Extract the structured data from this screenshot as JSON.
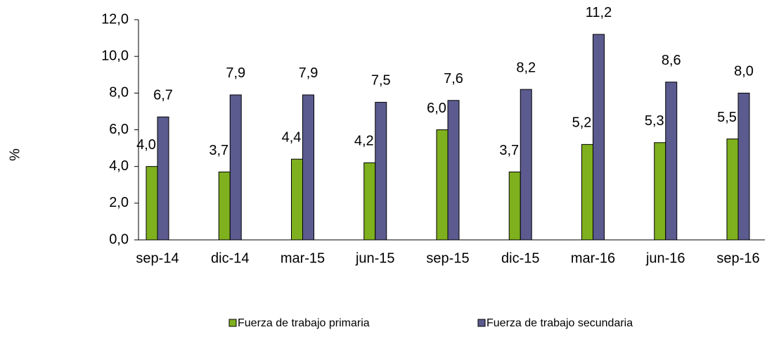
{
  "chart_data": {
    "type": "bar",
    "y_label": "%",
    "categories": [
      "sep-14",
      "dic-14",
      "mar-15",
      "jun-15",
      "sep-15",
      "dic-15",
      "mar-16",
      "jun-16",
      "sep-16"
    ],
    "series": [
      {
        "name": "Fuerza de trabajo primaria",
        "color": "#7fb01e",
        "values": [
          4.0,
          3.7,
          4.4,
          4.2,
          6.0,
          3.7,
          5.2,
          5.3,
          5.5
        ],
        "value_labels": [
          "4,0",
          "3,7",
          "4,4",
          "4,2",
          "6,0",
          "3,7",
          "5,2",
          "5,3",
          "5,5"
        ]
      },
      {
        "name": "Fuerza de trabajo secundaria",
        "color": "#5b5b8f",
        "values": [
          6.7,
          7.9,
          7.9,
          7.5,
          7.6,
          8.2,
          11.2,
          8.6,
          8.0
        ],
        "value_labels": [
          "6,7",
          "7,9",
          "7,9",
          "7,5",
          "7,6",
          "8,2",
          "11,2",
          "8,6",
          "8,0"
        ]
      }
    ],
    "ylim": [
      0,
      12
    ],
    "yticks": [
      {
        "value": 0,
        "label": "0,0"
      },
      {
        "value": 2,
        "label": "2,0"
      },
      {
        "value": 4,
        "label": "4,0"
      },
      {
        "value": 6,
        "label": "6,0"
      },
      {
        "value": 8,
        "label": "8,0"
      },
      {
        "value": 10,
        "label": "10,0"
      },
      {
        "value": 12,
        "label": "12,0"
      }
    ],
    "legend": "bottom"
  }
}
